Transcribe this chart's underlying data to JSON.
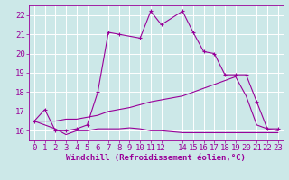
{
  "xlabel": "Windchill (Refroidissement éolien,°C)",
  "bg_color": "#cce8e8",
  "grid_color": "#ffffff",
  "line_color": "#990099",
  "xlim": [
    -0.5,
    23.5
  ],
  "ylim": [
    15.5,
    22.5
  ],
  "yticks": [
    16,
    17,
    18,
    19,
    20,
    21,
    22
  ],
  "xticks": [
    0,
    1,
    2,
    3,
    4,
    5,
    6,
    7,
    8,
    9,
    10,
    11,
    12,
    14,
    15,
    16,
    17,
    18,
    19,
    20,
    21,
    22,
    23
  ],
  "line1_x": [
    0,
    1,
    2,
    3,
    4,
    5,
    6,
    7,
    8,
    10,
    11,
    12,
    14,
    15,
    16,
    17,
    18,
    19,
    20,
    21,
    22,
    23
  ],
  "line1_y": [
    16.5,
    17.1,
    16.0,
    16.0,
    16.1,
    16.3,
    18.0,
    21.1,
    21.0,
    20.8,
    22.2,
    21.5,
    22.2,
    21.1,
    20.1,
    20.0,
    18.9,
    18.9,
    18.9,
    17.5,
    16.1,
    16.1
  ],
  "line2_x": [
    0,
    2,
    3,
    4,
    5,
    6,
    7,
    8,
    9,
    10,
    11,
    12,
    14,
    15,
    16,
    17,
    18,
    19,
    20,
    21,
    22,
    23
  ],
  "line2_y": [
    16.5,
    16.1,
    15.8,
    16.0,
    16.0,
    16.1,
    16.1,
    16.1,
    16.15,
    16.1,
    16.0,
    16.0,
    15.9,
    15.9,
    15.9,
    15.9,
    15.9,
    15.9,
    15.9,
    15.9,
    15.9,
    15.9
  ],
  "line3_x": [
    0,
    1,
    2,
    3,
    4,
    5,
    6,
    7,
    8,
    9,
    10,
    11,
    12,
    14,
    15,
    16,
    17,
    18,
    19,
    20,
    21,
    22,
    23
  ],
  "line3_y": [
    16.5,
    16.5,
    16.5,
    16.6,
    16.6,
    16.7,
    16.8,
    17.0,
    17.1,
    17.2,
    17.35,
    17.5,
    17.6,
    17.8,
    18.0,
    18.2,
    18.4,
    18.6,
    18.8,
    17.8,
    16.3,
    16.1,
    16.0
  ],
  "font": "monospace",
  "xlabel_fontsize": 6.5,
  "tick_fontsize": 6.5
}
